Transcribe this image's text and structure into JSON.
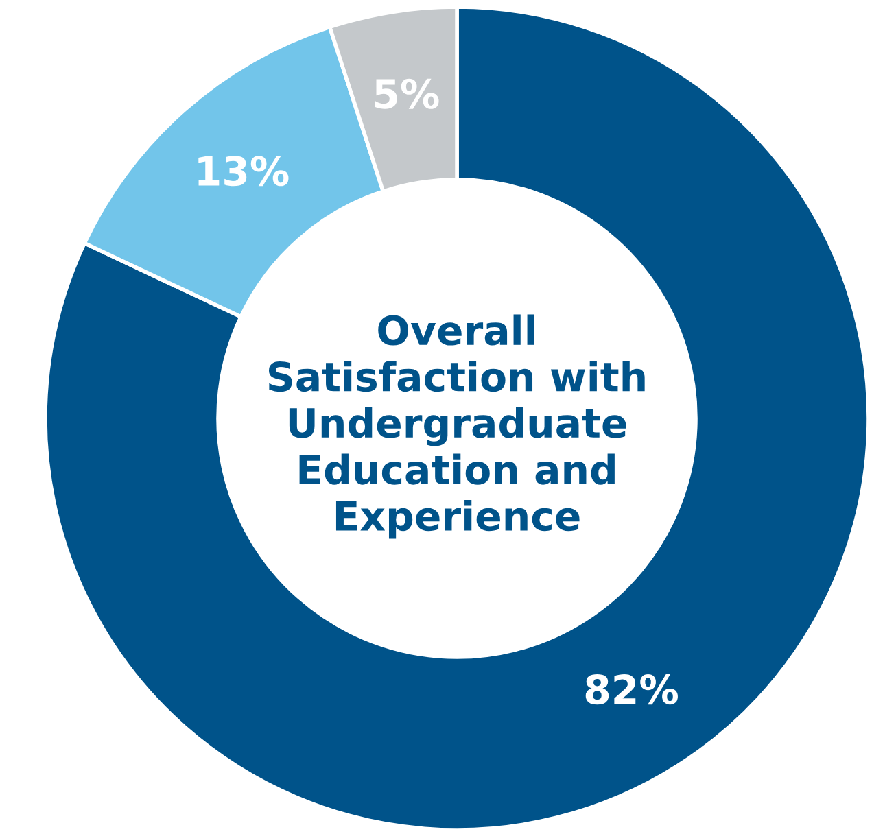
{
  "chart_data": {
    "type": "donut",
    "title": "Overall\nSatisfaction with\nUndergraduate\nEducation and\nExperience",
    "categories": [
      null,
      null,
      null
    ],
    "values": [
      82,
      13,
      5
    ],
    "colors": [
      "#00538a",
      "#72c5ea",
      "#c4c8cb"
    ],
    "value_labels": [
      "82%",
      "13%",
      "5%"
    ],
    "legend": false
  }
}
